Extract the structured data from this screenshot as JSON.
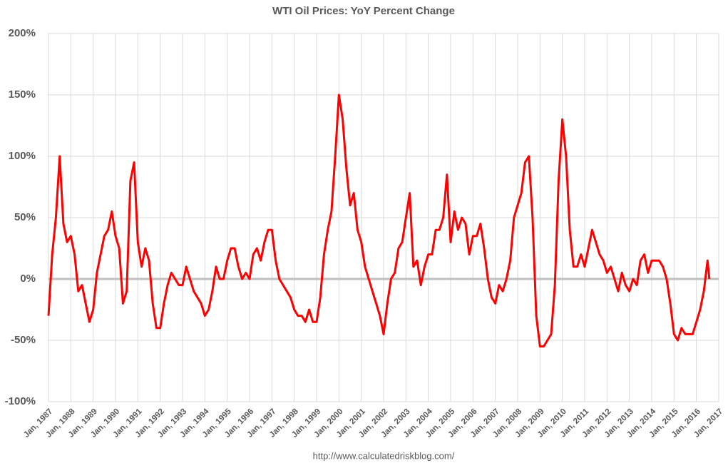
{
  "chart_data": {
    "type": "line",
    "title": "WTI Oil Prices: YoY Percent Change",
    "source": "http://www.calculatedriskblog.com/",
    "color": "#ff0000",
    "grid": true,
    "ylim": [
      -100,
      200
    ],
    "yticks": [
      {
        "value": -100,
        "label": "-100%"
      },
      {
        "value": -50,
        "label": "-50%"
      },
      {
        "value": 0,
        "label": "0%"
      },
      {
        "value": 50,
        "label": "50%"
      },
      {
        "value": 100,
        "label": "100%"
      },
      {
        "value": 150,
        "label": "150%"
      },
      {
        "value": 200,
        "label": "200%"
      }
    ],
    "xlim": [
      "1987-01",
      "2017-01"
    ],
    "xticks": [
      {
        "value": "1987-01",
        "label": "Jan, 1987"
      },
      {
        "value": "1988-01",
        "label": "Jan, 1988"
      },
      {
        "value": "1989-01",
        "label": "Jan, 1989"
      },
      {
        "value": "1990-01",
        "label": "Jan, 1990"
      },
      {
        "value": "1991-01",
        "label": "Jan, 1991"
      },
      {
        "value": "1992-01",
        "label": "Jan, 1992"
      },
      {
        "value": "1993-01",
        "label": "Jan, 1993"
      },
      {
        "value": "1994-01",
        "label": "Jan, 1994"
      },
      {
        "value": "1995-01",
        "label": "Jan, 1995"
      },
      {
        "value": "1996-01",
        "label": "Jan, 1996"
      },
      {
        "value": "1997-01",
        "label": "Jan, 1997"
      },
      {
        "value": "1998-01",
        "label": "Jan, 1998"
      },
      {
        "value": "1999-01",
        "label": "Jan, 1999"
      },
      {
        "value": "2000-01",
        "label": "Jan, 2000"
      },
      {
        "value": "2001-01",
        "label": "Jan, 2001"
      },
      {
        "value": "2002-01",
        "label": "Jan, 2002"
      },
      {
        "value": "2003-01",
        "label": "Jan, 2003"
      },
      {
        "value": "2004-01",
        "label": "Jan, 2004"
      },
      {
        "value": "2005-01",
        "label": "Jan, 2005"
      },
      {
        "value": "2006-01",
        "label": "Jan, 2006"
      },
      {
        "value": "2007-01",
        "label": "Jan, 2007"
      },
      {
        "value": "2008-01",
        "label": "Jan, 2008"
      },
      {
        "value": "2009-01",
        "label": "Jan, 2009"
      },
      {
        "value": "2010-01",
        "label": "Jan, 2010"
      },
      {
        "value": "2011-01",
        "label": "Jan, 2011"
      },
      {
        "value": "2012-01",
        "label": "Jan, 2012"
      },
      {
        "value": "2013-01",
        "label": "Jan, 2013"
      },
      {
        "value": "2014-01",
        "label": "Jan, 2014"
      },
      {
        "value": "2015-01",
        "label": "Jan, 2015"
      },
      {
        "value": "2016-01",
        "label": "Jan, 2016"
      },
      {
        "value": "2017-01",
        "label": "Jan, 2017"
      }
    ],
    "x": [
      "1987-01",
      "1987-03",
      "1987-05",
      "1987-07",
      "1987-09",
      "1987-11",
      "1988-01",
      "1988-03",
      "1988-05",
      "1988-07",
      "1988-09",
      "1988-11",
      "1989-01",
      "1989-03",
      "1989-05",
      "1989-07",
      "1989-09",
      "1989-11",
      "1990-01",
      "1990-03",
      "1990-05",
      "1990-07",
      "1990-09",
      "1990-11",
      "1991-01",
      "1991-03",
      "1991-05",
      "1991-07",
      "1991-09",
      "1991-11",
      "1992-01",
      "1992-03",
      "1992-05",
      "1992-07",
      "1992-09",
      "1992-11",
      "1993-01",
      "1993-03",
      "1993-05",
      "1993-07",
      "1993-09",
      "1993-11",
      "1994-01",
      "1994-03",
      "1994-05",
      "1994-07",
      "1994-09",
      "1994-11",
      "1995-01",
      "1995-03",
      "1995-05",
      "1995-07",
      "1995-09",
      "1995-11",
      "1996-01",
      "1996-03",
      "1996-05",
      "1996-07",
      "1996-09",
      "1996-11",
      "1997-01",
      "1997-03",
      "1997-05",
      "1997-07",
      "1997-09",
      "1997-11",
      "1998-01",
      "1998-03",
      "1998-05",
      "1998-07",
      "1998-09",
      "1998-11",
      "1999-01",
      "1999-03",
      "1999-05",
      "1999-07",
      "1999-09",
      "1999-11",
      "2000-01",
      "2000-03",
      "2000-05",
      "2000-07",
      "2000-09",
      "2000-11",
      "2001-01",
      "2001-03",
      "2001-05",
      "2001-07",
      "2001-09",
      "2001-11",
      "2002-01",
      "2002-03",
      "2002-05",
      "2002-07",
      "2002-09",
      "2002-11",
      "2003-01",
      "2003-03",
      "2003-05",
      "2003-07",
      "2003-09",
      "2003-11",
      "2004-01",
      "2004-03",
      "2004-05",
      "2004-07",
      "2004-09",
      "2004-11",
      "2005-01",
      "2005-03",
      "2005-05",
      "2005-07",
      "2005-09",
      "2005-11",
      "2006-01",
      "2006-03",
      "2006-05",
      "2006-07",
      "2006-09",
      "2006-11",
      "2007-01",
      "2007-03",
      "2007-05",
      "2007-07",
      "2007-09",
      "2007-11",
      "2008-01",
      "2008-03",
      "2008-05",
      "2008-07",
      "2008-09",
      "2008-11",
      "2009-01",
      "2009-03",
      "2009-05",
      "2009-07",
      "2009-09",
      "2009-11",
      "2010-01",
      "2010-03",
      "2010-05",
      "2010-07",
      "2010-09",
      "2010-11",
      "2011-01",
      "2011-03",
      "2011-05",
      "2011-07",
      "2011-09",
      "2011-11",
      "2012-01",
      "2012-03",
      "2012-05",
      "2012-07",
      "2012-09",
      "2012-11",
      "2013-01",
      "2013-03",
      "2013-05",
      "2013-07",
      "2013-09",
      "2013-11",
      "2014-01",
      "2014-03",
      "2014-05",
      "2014-07",
      "2014-09",
      "2014-11",
      "2015-01",
      "2015-03",
      "2015-05",
      "2015-07",
      "2015-09",
      "2015-11",
      "2016-01",
      "2016-03",
      "2016-05",
      "2016-07",
      "2016-08"
    ],
    "values": [
      -30,
      20,
      50,
      100,
      45,
      30,
      35,
      20,
      -10,
      -5,
      -20,
      -35,
      -25,
      5,
      20,
      35,
      40,
      55,
      35,
      25,
      -20,
      -10,
      80,
      95,
      30,
      10,
      25,
      15,
      -20,
      -40,
      -40,
      -20,
      -5,
      5,
      0,
      -5,
      -5,
      10,
      0,
      -10,
      -15,
      -20,
      -30,
      -25,
      -10,
      10,
      0,
      0,
      15,
      25,
      25,
      10,
      0,
      5,
      0,
      20,
      25,
      15,
      30,
      40,
      40,
      15,
      0,
      -5,
      -10,
      -15,
      -25,
      -30,
      -30,
      -35,
      -25,
      -35,
      -35,
      -15,
      20,
      40,
      55,
      100,
      150,
      130,
      90,
      60,
      70,
      40,
      30,
      10,
      0,
      -10,
      -20,
      -30,
      -45,
      -20,
      0,
      5,
      25,
      30,
      50,
      70,
      10,
      15,
      -5,
      10,
      20,
      20,
      40,
      40,
      50,
      85,
      30,
      55,
      40,
      50,
      45,
      20,
      35,
      35,
      45,
      25,
      0,
      -15,
      -20,
      -5,
      -10,
      0,
      15,
      50,
      60,
      70,
      95,
      100,
      50,
      -30,
      -55,
      -55,
      -50,
      -45,
      -5,
      80,
      130,
      100,
      40,
      10,
      10,
      20,
      10,
      25,
      40,
      30,
      20,
      15,
      5,
      10,
      0,
      -10,
      5,
      -5,
      -10,
      0,
      -5,
      15,
      20,
      5,
      15,
      15,
      15,
      10,
      0,
      -20,
      -45,
      -50,
      -40,
      -45,
      -45,
      -45,
      -35,
      -25,
      -10,
      15,
      0
    ]
  }
}
